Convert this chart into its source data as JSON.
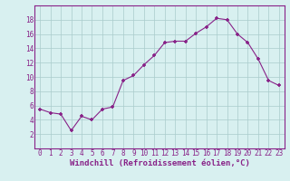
{
  "x": [
    0,
    1,
    2,
    3,
    4,
    5,
    6,
    7,
    8,
    9,
    10,
    11,
    12,
    13,
    14,
    15,
    16,
    17,
    18,
    19,
    20,
    21,
    22,
    23
  ],
  "y": [
    5.5,
    5.0,
    4.8,
    2.5,
    4.5,
    4.0,
    5.5,
    5.8,
    9.5,
    10.2,
    11.7,
    13.0,
    14.8,
    15.0,
    15.0,
    16.1,
    17.0,
    18.2,
    18.0,
    16.0,
    14.8,
    12.5,
    9.5,
    8.8
  ],
  "line_color": "#882288",
  "marker": "+",
  "marker_size": 3.5,
  "marker_linewidth": 1.2,
  "line_width": 0.8,
  "xlabel": "Windchill (Refroidissement éolien,°C)",
  "xlabel_fontsize": 6.5,
  "ylim": [
    0,
    20
  ],
  "xlim_min": -0.5,
  "xlim_max": 23.5,
  "yticks": [
    2,
    4,
    6,
    8,
    10,
    12,
    14,
    16,
    18
  ],
  "xticks": [
    0,
    1,
    2,
    3,
    4,
    5,
    6,
    7,
    8,
    9,
    10,
    11,
    12,
    13,
    14,
    15,
    16,
    17,
    18,
    19,
    20,
    21,
    22,
    23
  ],
  "grid_color": "#aacccc",
  "background_color": "#d8f0f0",
  "tick_fontsize": 5.5,
  "xlabel_color": "#882288",
  "tick_color": "#882288",
  "spine_color": "#882288"
}
